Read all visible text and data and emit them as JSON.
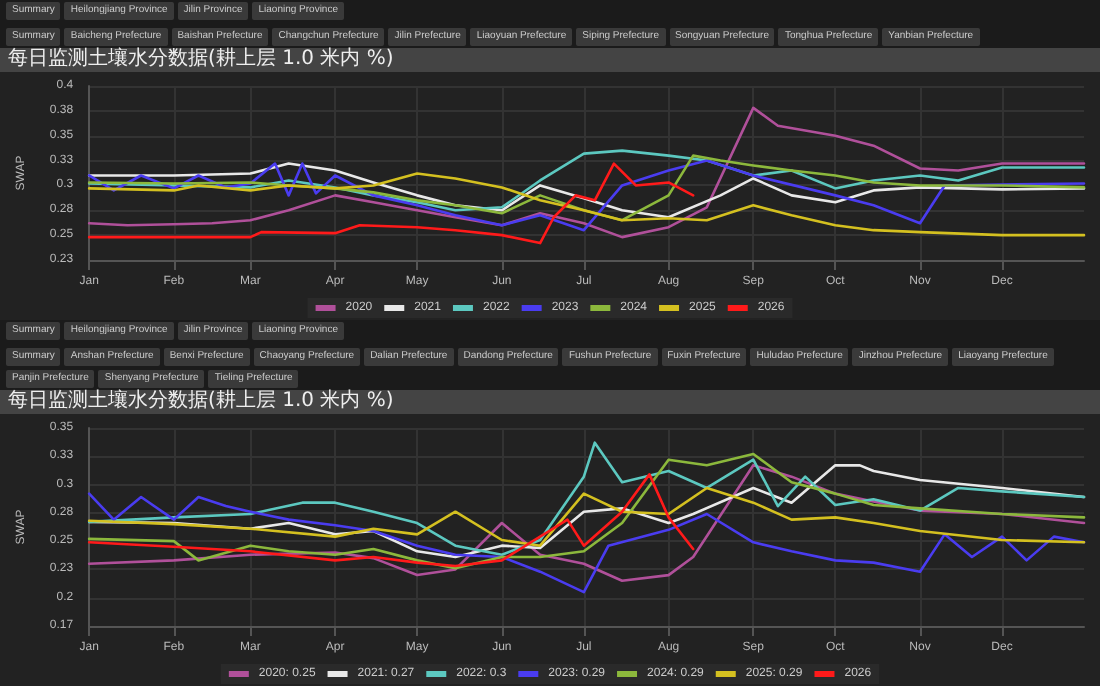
{
  "chart_data": [
    {
      "type": "line",
      "title": "每日监测土壤水分数据(耕上层 1.0 米内 %)",
      "ylabel": "SWAP",
      "marker": "none",
      "line_style": "solid",
      "grid": true,
      "legend": "bottom",
      "annotations": [
        "Summary",
        "Heilongjiang Province",
        "Jilin Province",
        "Liaoning Province",
        "Summary",
        "Baicheng Prefecture",
        "Baishan Prefecture",
        "Changchun Prefecture",
        "Jilin Prefecture",
        "Liaoyuan Prefecture",
        "Siping Prefecture",
        "Songyuan Prefecture",
        "Tonghua Prefecture",
        "Yanbian Prefecture"
      ],
      "xlim": [
        "--01-01",
        "--12-31"
      ],
      "xticks": [
        {
          "value": "--01-01",
          "label": "Jan"
        },
        {
          "value": "--02-01",
          "label": "Feb"
        },
        {
          "value": "--03-01",
          "label": "Mar"
        },
        {
          "value": "--04-01",
          "label": "Apr"
        },
        {
          "value": "--05-01",
          "label": "May"
        },
        {
          "value": "--06-01",
          "label": "Jun"
        },
        {
          "value": "--07-01",
          "label": "Jul"
        },
        {
          "value": "--08-01",
          "label": "Aug"
        },
        {
          "value": "--09-01",
          "label": "Sep"
        },
        {
          "value": "--10-01",
          "label": "Oct"
        },
        {
          "value": "--11-01",
          "label": "Nov"
        },
        {
          "value": "--12-01",
          "label": "Dec"
        }
      ],
      "ylim": [
        0.225,
        0.4
      ],
      "yticks": [
        {
          "value": 0.225,
          "label": "0.23"
        },
        0.25,
        {
          "value": 0.275,
          "label": "0.28"
        },
        0.3,
        {
          "value": 0.325,
          "label": "0.33"
        },
        0.35,
        {
          "value": 0.375,
          "label": "0.38"
        },
        0.4
      ],
      "series": [
        {
          "name": "2020",
          "color": "#b0509a",
          "x": [
            "--01-01",
            "--01-15",
            "--02-01",
            "--02-15",
            "--03-01",
            "--03-15",
            "--04-01",
            "--04-15",
            "--05-01",
            "--05-15",
            "--06-01",
            "--06-15",
            "--07-01",
            "--07-15",
            "--08-01",
            "--08-15",
            "--09-01",
            "--09-10",
            "--10-01",
            "--10-15",
            "--11-01",
            "--11-15",
            "--12-01",
            "--12-31"
          ],
          "values": [
            0.262,
            0.26,
            0.261,
            0.262,
            0.265,
            0.275,
            0.29,
            0.283,
            0.275,
            0.268,
            0.26,
            0.272,
            0.262,
            0.248,
            0.258,
            0.278,
            0.378,
            0.36,
            0.35,
            0.34,
            0.317,
            0.315,
            0.322,
            0.322
          ]
        },
        {
          "name": "2021",
          "color": "#e8e8e8",
          "x": [
            "--01-01",
            "--02-01",
            "--03-01",
            "--03-15",
            "--04-01",
            "--04-15",
            "--05-01",
            "--05-15",
            "--06-01",
            "--06-15",
            "--07-01",
            "--07-15",
            "--08-01",
            "--08-20",
            "--09-01",
            "--09-15",
            "--10-01",
            "--10-15",
            "--11-01",
            "--12-01",
            "--12-31"
          ],
          "values": [
            0.31,
            0.31,
            0.312,
            0.322,
            0.315,
            0.303,
            0.29,
            0.28,
            0.275,
            0.3,
            0.287,
            0.275,
            0.268,
            0.29,
            0.307,
            0.29,
            0.283,
            0.295,
            0.298,
            0.296,
            0.297
          ]
        },
        {
          "name": "2022",
          "color": "#5cc8c0",
          "x": [
            "--01-01",
            "--02-01",
            "--03-01",
            "--03-15",
            "--04-01",
            "--04-15",
            "--05-01",
            "--05-15",
            "--06-01",
            "--06-15",
            "--07-01",
            "--07-15",
            "--08-01",
            "--08-15",
            "--09-01",
            "--09-15",
            "--10-01",
            "--10-15",
            "--11-01",
            "--11-15",
            "--12-01",
            "--12-31"
          ],
          "values": [
            0.302,
            0.3,
            0.298,
            0.305,
            0.298,
            0.29,
            0.283,
            0.275,
            0.278,
            0.305,
            0.332,
            0.335,
            0.33,
            0.325,
            0.31,
            0.315,
            0.297,
            0.305,
            0.31,
            0.305,
            0.318,
            0.318
          ]
        },
        {
          "name": "2023",
          "color": "#4a3cf0",
          "x": [
            "--01-01",
            "--01-10",
            "--01-20",
            "--02-01",
            "--02-10",
            "--02-20",
            "--03-01",
            "--03-10",
            "--03-15",
            "--03-20",
            "--03-25",
            "--04-01",
            "--04-15",
            "--05-01",
            "--05-15",
            "--06-01",
            "--06-15",
            "--07-01",
            "--07-15",
            "--08-01",
            "--08-15",
            "--09-01",
            "--10-01",
            "--10-15",
            "--11-01",
            "--11-10",
            "--12-01",
            "--12-31"
          ],
          "values": [
            0.31,
            0.295,
            0.31,
            0.297,
            0.31,
            0.298,
            0.302,
            0.322,
            0.29,
            0.322,
            0.292,
            0.31,
            0.29,
            0.28,
            0.27,
            0.26,
            0.27,
            0.255,
            0.3,
            0.315,
            0.325,
            0.31,
            0.29,
            0.28,
            0.262,
            0.3,
            0.301,
            0.302
          ]
        },
        {
          "name": "2024",
          "color": "#8cb83c",
          "x": [
            "--01-01",
            "--02-01",
            "--03-01",
            "--03-15",
            "--04-01",
            "--04-15",
            "--05-01",
            "--05-15",
            "--06-01",
            "--06-15",
            "--07-01",
            "--07-15",
            "--08-01",
            "--08-10",
            "--08-20",
            "--09-01",
            "--09-15",
            "--10-01",
            "--10-15",
            "--11-01",
            "--12-01",
            "--12-31"
          ],
          "values": [
            0.303,
            0.302,
            0.303,
            0.3,
            0.297,
            0.293,
            0.285,
            0.28,
            0.272,
            0.29,
            0.275,
            0.265,
            0.29,
            0.33,
            0.325,
            0.32,
            0.315,
            0.31,
            0.303,
            0.3,
            0.3,
            0.298
          ]
        },
        {
          "name": "2025",
          "color": "#d4c020",
          "x": [
            "--01-01",
            "--02-01",
            "--02-10",
            "--03-01",
            "--03-15",
            "--04-01",
            "--04-15",
            "--05-01",
            "--05-15",
            "--06-01",
            "--06-15",
            "--07-01",
            "--07-15",
            "--08-01",
            "--08-15",
            "--09-01",
            "--09-15",
            "--10-01",
            "--10-15",
            "--11-01",
            "--12-01",
            "--12-31"
          ],
          "values": [
            0.297,
            0.295,
            0.3,
            0.295,
            0.3,
            0.297,
            0.3,
            0.312,
            0.307,
            0.298,
            0.285,
            0.275,
            0.265,
            0.267,
            0.265,
            0.28,
            0.27,
            0.26,
            0.255,
            0.253,
            0.25,
            0.25
          ]
        },
        {
          "name": "2026",
          "color": "#ff1a1a",
          "x": [
            "--01-01",
            "--03-01",
            "--03-05",
            "--04-01",
            "--04-10",
            "--05-01",
            "--05-15",
            "--06-01",
            "--06-15",
            "--06-20",
            "--06-28",
            "--07-05",
            "--07-12",
            "--07-20",
            "--08-01",
            "--08-10"
          ],
          "values": [
            0.248,
            0.248,
            0.253,
            0.252,
            0.26,
            0.258,
            0.255,
            0.25,
            0.242,
            0.268,
            0.29,
            0.285,
            0.322,
            0.3,
            0.303,
            0.29
          ]
        }
      ]
    },
    {
      "type": "line",
      "title": "每日监测土壤水分数据(耕上层 1.0 米内 %)",
      "ylabel": "SWAP",
      "marker": "none",
      "line_style": "solid",
      "grid": true,
      "legend": "bottom",
      "annotations": [
        "Summary",
        "Heilongjiang Province",
        "Jilin Province",
        "Liaoning Province",
        "Summary",
        "Anshan Prefecture",
        "Benxi Prefecture",
        "Chaoyang Prefecture",
        "Dalian Prefecture",
        "Dandong Prefecture",
        "Fushun Prefecture",
        "Fuxin Prefecture",
        "Huludao Prefecture",
        "Jinzhou Prefecture",
        "Liaoyang Prefecture",
        "Panjin Prefecture",
        "Shenyang Prefecture",
        "Tieling Prefecture"
      ],
      "xlim": [
        "--01-01",
        "--12-31"
      ],
      "xticks": [
        {
          "value": "--01-01",
          "label": "Jan"
        },
        {
          "value": "--02-01",
          "label": "Feb"
        },
        {
          "value": "--03-01",
          "label": "Mar"
        },
        {
          "value": "--04-01",
          "label": "Apr"
        },
        {
          "value": "--05-01",
          "label": "May"
        },
        {
          "value": "--06-01",
          "label": "Jun"
        },
        {
          "value": "--07-01",
          "label": "Jul"
        },
        {
          "value": "--08-01",
          "label": "Aug"
        },
        {
          "value": "--09-01",
          "label": "Sep"
        },
        {
          "value": "--10-01",
          "label": "Oct"
        },
        {
          "value": "--11-01",
          "label": "Nov"
        },
        {
          "value": "--12-01",
          "label": "Dec"
        }
      ],
      "ylim": [
        0.175,
        0.35
      ],
      "yticks": [
        {
          "value": 0.175,
          "label": "0.17"
        },
        0.2,
        {
          "value": 0.225,
          "label": "0.23"
        },
        0.25,
        {
          "value": 0.275,
          "label": "0.28"
        },
        0.3,
        {
          "value": 0.325,
          "label": "0.33"
        },
        0.35
      ],
      "series": [
        {
          "name": "2020: 0.25",
          "color": "#b0509a",
          "x": [
            "--01-01",
            "--02-01",
            "--03-01",
            "--04-01",
            "--04-15",
            "--05-01",
            "--05-15",
            "--06-01",
            "--06-15",
            "--07-01",
            "--07-15",
            "--08-01",
            "--08-10",
            "--09-01",
            "--09-15",
            "--10-01",
            "--10-15",
            "--11-01",
            "--12-01",
            "--12-31"
          ],
          "values": [
            0.23,
            0.233,
            0.238,
            0.24,
            0.235,
            0.22,
            0.225,
            0.266,
            0.238,
            0.23,
            0.215,
            0.22,
            0.236,
            0.317,
            0.307,
            0.292,
            0.285,
            0.277,
            0.274,
            0.266
          ]
        },
        {
          "name": "2021: 0.27",
          "color": "#e8e8e8",
          "x": [
            "--01-01",
            "--02-01",
            "--03-01",
            "--03-15",
            "--04-01",
            "--04-15",
            "--05-01",
            "--05-15",
            "--06-01",
            "--06-15",
            "--07-01",
            "--07-15",
            "--08-01",
            "--08-10",
            "--09-01",
            "--09-15",
            "--10-01",
            "--10-10",
            "--10-15",
            "--11-01",
            "--12-01",
            "--12-31"
          ],
          "values": [
            0.267,
            0.266,
            0.261,
            0.266,
            0.256,
            0.259,
            0.241,
            0.236,
            0.246,
            0.244,
            0.276,
            0.279,
            0.266,
            0.274,
            0.297,
            0.284,
            0.317,
            0.317,
            0.312,
            0.304,
            0.297,
            0.289
          ]
        },
        {
          "name": "2022: 0.3",
          "color": "#5cc8c0",
          "x": [
            "--01-01",
            "--02-01",
            "--03-01",
            "--03-20",
            "--04-01",
            "--04-15",
            "--05-01",
            "--05-15",
            "--06-01",
            "--06-15",
            "--07-01",
            "--07-05",
            "--07-15",
            "--08-01",
            "--08-15",
            "--09-01",
            "--09-10",
            "--09-20",
            "--10-01",
            "--10-15",
            "--11-01",
            "--11-15",
            "--12-01",
            "--12-31"
          ],
          "values": [
            0.267,
            0.271,
            0.274,
            0.284,
            0.284,
            0.276,
            0.266,
            0.246,
            0.238,
            0.251,
            0.307,
            0.337,
            0.302,
            0.312,
            0.297,
            0.322,
            0.281,
            0.307,
            0.282,
            0.287,
            0.277,
            0.297,
            0.294,
            0.289
          ]
        },
        {
          "name": "2023: 0.29",
          "color": "#4a3cf0",
          "x": [
            "--01-01",
            "--01-10",
            "--01-20",
            "--02-01",
            "--02-10",
            "--02-20",
            "--03-01",
            "--03-15",
            "--04-01",
            "--04-15",
            "--05-01",
            "--05-15",
            "--06-01",
            "--06-15",
            "--07-01",
            "--07-10",
            "--08-01",
            "--08-15",
            "--09-01",
            "--09-15",
            "--10-01",
            "--10-15",
            "--11-01",
            "--11-10",
            "--11-20",
            "--12-01",
            "--12-10",
            "--12-20",
            "--12-31"
          ],
          "values": [
            0.292,
            0.269,
            0.289,
            0.269,
            0.289,
            0.281,
            0.276,
            0.269,
            0.264,
            0.259,
            0.246,
            0.238,
            0.236,
            0.223,
            0.205,
            0.246,
            0.26,
            0.274,
            0.249,
            0.241,
            0.233,
            0.231,
            0.223,
            0.256,
            0.236,
            0.254,
            0.233,
            0.254,
            0.249
          ]
        },
        {
          "name": "2024: 0.29",
          "color": "#8cb83c",
          "x": [
            "--01-01",
            "--02-01",
            "--02-10",
            "--03-01",
            "--03-15",
            "--04-01",
            "--04-15",
            "--05-01",
            "--05-15",
            "--06-01",
            "--06-15",
            "--07-01",
            "--07-15",
            "--08-01",
            "--08-15",
            "--09-01",
            "--09-15",
            "--10-01",
            "--10-15",
            "--11-01",
            "--12-01",
            "--12-31"
          ],
          "values": [
            0.252,
            0.25,
            0.233,
            0.246,
            0.241,
            0.238,
            0.243,
            0.233,
            0.226,
            0.236,
            0.236,
            0.241,
            0.266,
            0.322,
            0.317,
            0.327,
            0.302,
            0.292,
            0.282,
            0.279,
            0.274,
            0.271
          ]
        },
        {
          "name": "2025: 0.29",
          "color": "#d4c020",
          "x": [
            "--01-01",
            "--02-01",
            "--03-01",
            "--04-01",
            "--04-15",
            "--05-01",
            "--05-15",
            "--06-01",
            "--06-15",
            "--07-01",
            "--07-15",
            "--08-01",
            "--08-15",
            "--09-01",
            "--09-15",
            "--10-01",
            "--10-15",
            "--11-01",
            "--12-01",
            "--12-31"
          ],
          "values": [
            0.268,
            0.265,
            0.261,
            0.254,
            0.261,
            0.256,
            0.276,
            0.251,
            0.246,
            0.292,
            0.276,
            0.274,
            0.297,
            0.284,
            0.269,
            0.271,
            0.266,
            0.259,
            0.251,
            0.249
          ]
        },
        {
          "name": "2026",
          "color": "#ff1a1a",
          "x": [
            "--01-01",
            "--02-01",
            "--03-01",
            "--04-01",
            "--04-15",
            "--05-01",
            "--05-15",
            "--06-01",
            "--06-15",
            "--06-25",
            "--07-01",
            "--07-15",
            "--07-25",
            "--08-01",
            "--08-10"
          ],
          "values": [
            0.249,
            0.245,
            0.241,
            0.233,
            0.236,
            0.231,
            0.228,
            0.233,
            0.254,
            0.269,
            0.246,
            0.276,
            0.309,
            0.271,
            0.243
          ]
        }
      ]
    }
  ]
}
